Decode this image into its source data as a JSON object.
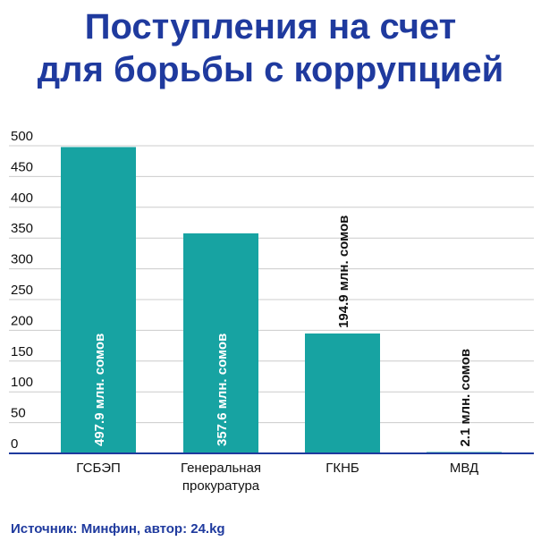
{
  "title_line1": "Поступления на счет",
  "title_line2": "для борьбы с коррупцией",
  "source": "Источник: Минфин, автор: 24.kg",
  "colors": {
    "title": "#1f3a9e",
    "bar": "#17a3a2",
    "axis": "#1f3a9e",
    "grid": "#cccccc"
  },
  "chart_data": {
    "type": "bar",
    "categories": [
      [
        "ГСБЭП"
      ],
      [
        "Генеральная",
        "прокуратура"
      ],
      [
        "ГКНБ"
      ],
      [
        "МВД"
      ]
    ],
    "values": [
      497.9,
      357.6,
      194.9,
      2.1
    ],
    "data_labels": [
      "497.9 млн. сомов",
      "357.6 млн. сомов",
      "194.9 млн. сомов",
      "2.1 млн. сомов"
    ],
    "yticks": [
      0,
      50,
      100,
      150,
      200,
      250,
      300,
      350,
      400,
      450,
      500
    ],
    "ylim": [
      0,
      500
    ],
    "grid": true,
    "legend": "none"
  }
}
